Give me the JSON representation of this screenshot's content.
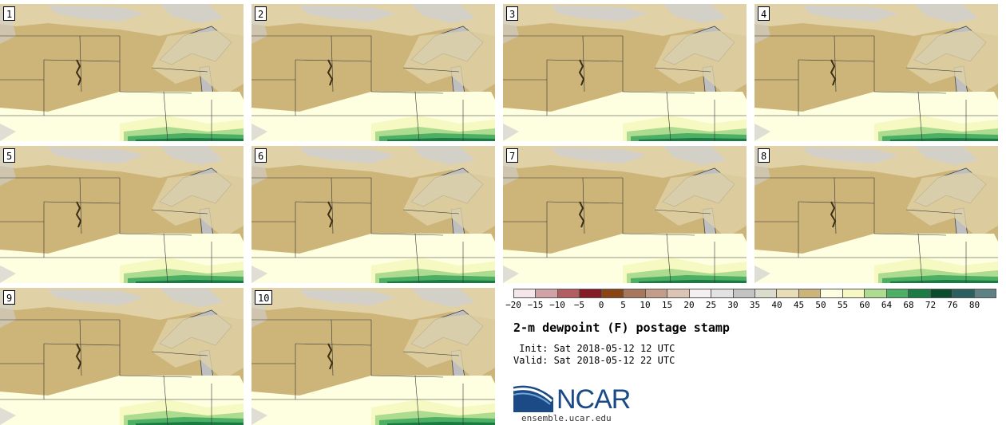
{
  "panels": [
    {
      "label": "1"
    },
    {
      "label": "2"
    },
    {
      "label": "3"
    },
    {
      "label": "4"
    },
    {
      "label": "5"
    },
    {
      "label": "6"
    },
    {
      "label": "7"
    },
    {
      "label": "8"
    },
    {
      "label": "9"
    },
    {
      "label": "10"
    }
  ],
  "legend": {
    "ticks": [
      "−20",
      "−15",
      "−10",
      "−5",
      "0",
      "5",
      "10",
      "15",
      "20",
      "25",
      "30",
      "35",
      "40",
      "45",
      "50",
      "55",
      "60",
      "64",
      "68",
      "72",
      "76",
      "80"
    ],
    "colors": [
      "#f4e6ea",
      "#d1a2a6",
      "#b35c62",
      "#861c25",
      "#8b4513",
      "#a8765a",
      "#c49c8a",
      "#dcc4b4",
      "#f3f0ef",
      "#e2e2e2",
      "#c3c3c3",
      "#dcdccd",
      "#e8dcb6",
      "#cdb57a",
      "#fefee0",
      "#f6f9c2",
      "#addb8f",
      "#4caf63",
      "#1a7c43",
      "#0a4d2c",
      "#2c5f60",
      "#5d8185"
    ]
  },
  "title": "2-m dewpoint (F) postage stamp",
  "init": " Init: Sat 2018-05-12 12 UTC",
  "valid": "Valid: Sat 2018-05-12 22 UTC",
  "logo": {
    "text": "NCAR",
    "site": "ensemble.ucar.edu",
    "brand_color": "#1b4a86"
  },
  "map_colors": {
    "tan": "#cdb57a",
    "light_tan": "#e0d2a6",
    "gray": "#d0d0d0",
    "lake": "#bfbfbf",
    "pale_yellow": "#fefee0",
    "yellow": "#f6f9c2",
    "green_light": "#addb8f",
    "green": "#4caf63",
    "green_dark": "#1a7c43",
    "green_deep": "#0a4d2c"
  }
}
